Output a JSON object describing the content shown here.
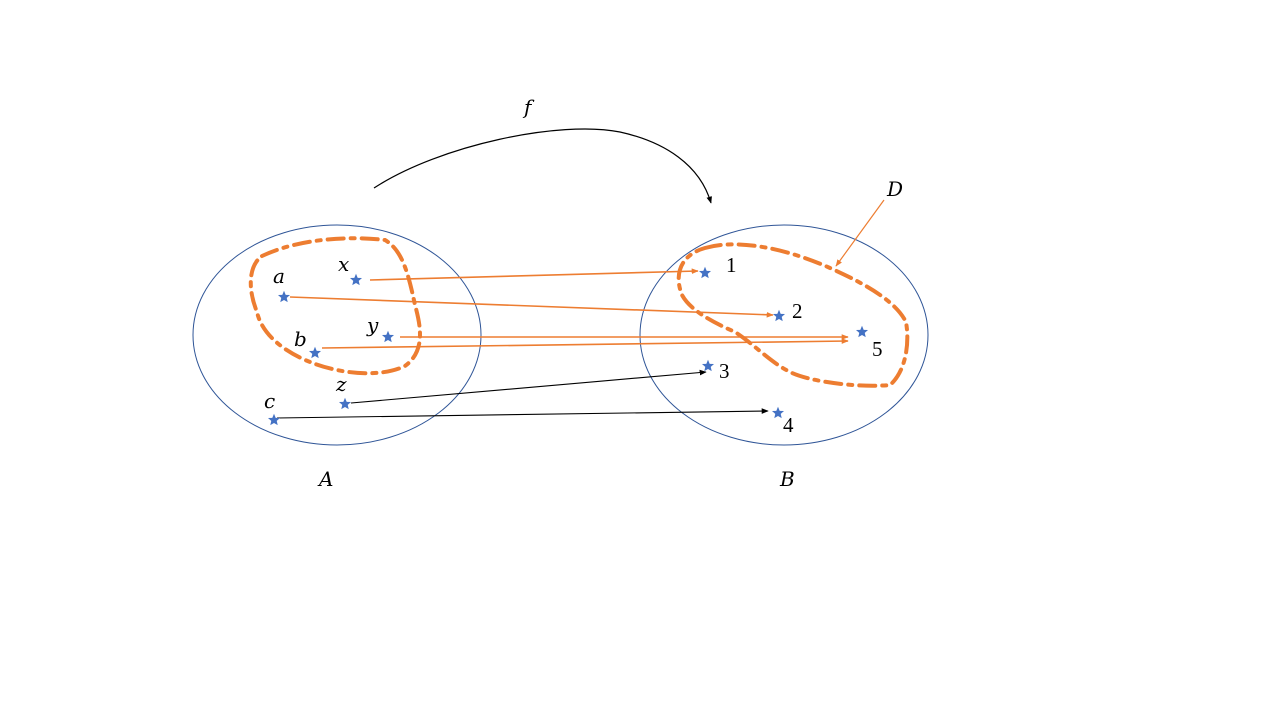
{
  "map_label": "f",
  "sets": {
    "domain": {
      "label": "A",
      "elements": [
        "a",
        "b",
        "c",
        "x",
        "y",
        "z"
      ]
    },
    "codomain": {
      "label": "B",
      "elements": [
        "1",
        "2",
        "3",
        "4",
        "5"
      ]
    }
  },
  "subset": {
    "label": "D",
    "members_in_domain": [
      "a",
      "b",
      "x",
      "y"
    ],
    "members_in_codomain": [
      "1",
      "2",
      "5"
    ]
  },
  "mappings": [
    {
      "from": "x",
      "to": "1",
      "highlighted": true
    },
    {
      "from": "a",
      "to": "2",
      "highlighted": true
    },
    {
      "from": "y",
      "to": "5",
      "highlighted": true
    },
    {
      "from": "b",
      "to": "5",
      "highlighted": true
    },
    {
      "from": "z",
      "to": "3",
      "highlighted": false
    },
    {
      "from": "c",
      "to": "4",
      "highlighted": false
    }
  ],
  "colors": {
    "set_outline": "#2F5597",
    "star": "#4472C4",
    "highlight": "#ED7D31",
    "plain_arrow": "#000000"
  }
}
